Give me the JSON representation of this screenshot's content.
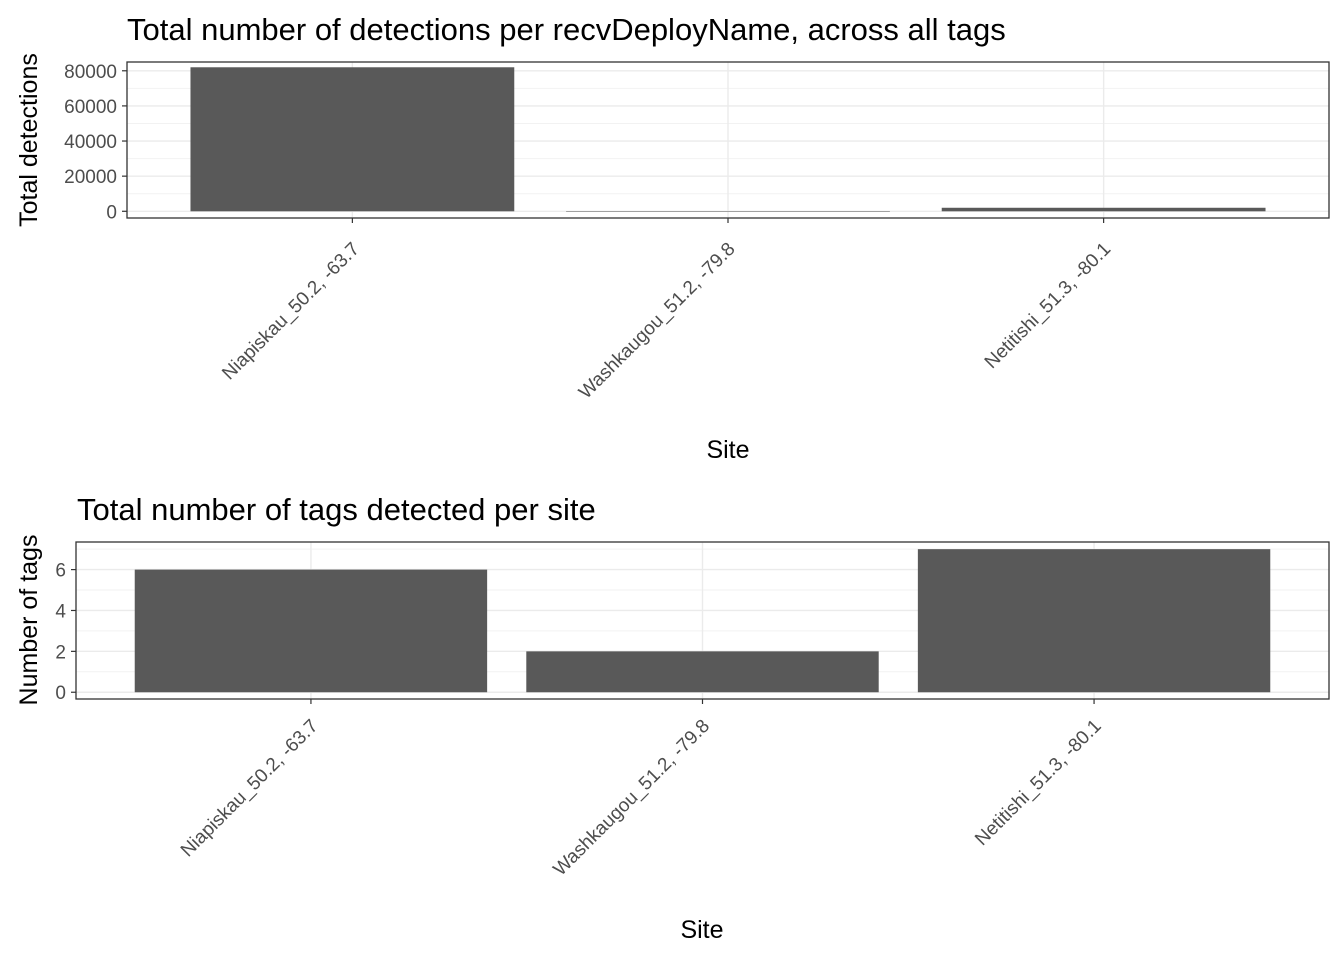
{
  "chart_data": [
    {
      "type": "bar",
      "title": "Total number of detections per recvDeployName, across all tags",
      "xlabel": "Site",
      "ylabel": "Total detections",
      "categories": [
        "Niapiskau_50.2, -63.7",
        "Washkaugou_51.2, -79.8",
        "Netitishi_51.3, -80.1"
      ],
      "values": [
        82000,
        0,
        2000
      ],
      "ylim": [
        0,
        85000
      ],
      "yticks": [
        0,
        20000,
        40000,
        60000,
        80000
      ],
      "ytick_labels": [
        "0",
        "20000",
        "40000",
        "60000",
        "80000"
      ],
      "bar_color": "#595959",
      "grid": true
    },
    {
      "type": "bar",
      "title": "Total number of tags detected per site",
      "xlabel": "Site",
      "ylabel": "Number of tags",
      "categories": [
        "Niapiskau_50.2, -63.7",
        "Washkaugou_51.2, -79.8",
        "Netitishi_51.3, -80.1"
      ],
      "values": [
        6,
        2,
        7
      ],
      "ylim": [
        0,
        7.35
      ],
      "yticks": [
        0,
        2,
        4,
        6
      ],
      "ytick_labels": [
        "0",
        "2",
        "4",
        "6"
      ],
      "bar_color": "#595959",
      "grid": true
    }
  ]
}
